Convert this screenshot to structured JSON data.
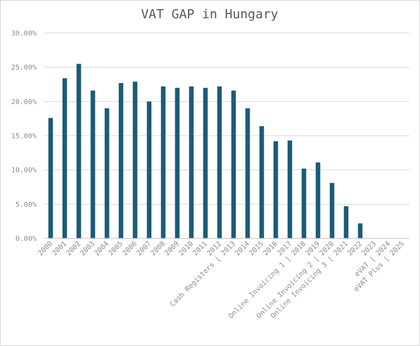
{
  "chart_data": {
    "type": "bar",
    "title": "VAT GAP in Hungary",
    "xlabel": "",
    "ylabel": "",
    "ylim": [
      0,
      0.3
    ],
    "yticks": [
      "0.00%",
      "5.00%",
      "10.00%",
      "15.00%",
      "20.00%",
      "25.00%",
      "30.00%"
    ],
    "grid": true,
    "legend": "none",
    "bar_color": "#1b5c78",
    "categories": [
      "2000",
      "2001",
      "2002",
      "2003",
      "2004",
      "2005",
      "2006",
      "2007",
      "2008",
      "2009",
      "2010",
      "2011",
      "2012",
      "Cash Registers | 2013",
      "2014",
      "2015",
      "2016",
      "2017",
      "Online Invoicing 1 | 2018",
      "2019",
      "Online Invoicing 2 | 2020",
      "Online Invoicing 3 | 2021",
      "2022",
      "2023",
      "eVAT | 2024",
      "eVAT Plus | 2025"
    ],
    "values": [
      0.176,
      0.234,
      0.255,
      0.216,
      0.19,
      0.227,
      0.229,
      0.2,
      0.222,
      0.22,
      0.222,
      0.22,
      0.222,
      0.216,
      0.19,
      0.164,
      0.142,
      0.143,
      0.102,
      0.111,
      0.081,
      0.047,
      0.022,
      0,
      0,
      0
    ]
  }
}
